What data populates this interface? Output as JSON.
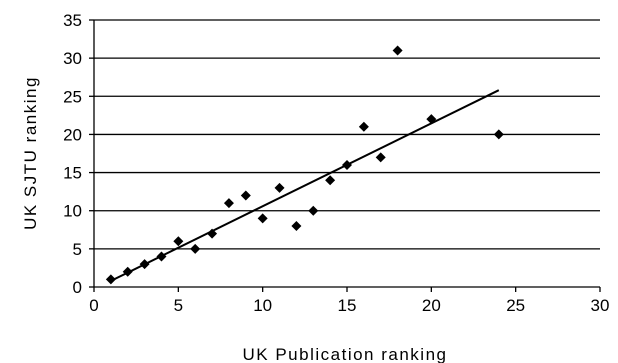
{
  "chart_data": {
    "type": "scatter",
    "title": "",
    "xlabel": "UK Publication ranking",
    "ylabel": "UK SJTU ranking",
    "xlim": [
      0,
      30
    ],
    "ylim": [
      0,
      35
    ],
    "x_ticks": [
      0,
      5,
      10,
      15,
      20,
      25,
      30
    ],
    "y_ticks": [
      0,
      5,
      10,
      15,
      20,
      25,
      30,
      35
    ],
    "grid": "horizontal",
    "legend": "none",
    "series": [
      {
        "points": [
          {
            "x": 1,
            "y": 1
          },
          {
            "x": 2,
            "y": 2
          },
          {
            "x": 3,
            "y": 3
          },
          {
            "x": 4,
            "y": 4
          },
          {
            "x": 5,
            "y": 6
          },
          {
            "x": 6,
            "y": 5
          },
          {
            "x": 7,
            "y": 7
          },
          {
            "x": 8,
            "y": 11
          },
          {
            "x": 9,
            "y": 12
          },
          {
            "x": 10,
            "y": 9
          },
          {
            "x": 11,
            "y": 13
          },
          {
            "x": 12,
            "y": 8
          },
          {
            "x": 13,
            "y": 10
          },
          {
            "x": 14,
            "y": 14
          },
          {
            "x": 15,
            "y": 16
          },
          {
            "x": 16,
            "y": 21
          },
          {
            "x": 17,
            "y": 17
          },
          {
            "x": 18,
            "y": 31
          },
          {
            "x": 20,
            "y": 22
          },
          {
            "x": 24,
            "y": 20
          }
        ]
      }
    ],
    "trendline": {
      "type": "linear",
      "x_start": 1,
      "y_start": 0.8,
      "x_end": 24,
      "y_end": 25.8
    }
  },
  "colors": {
    "marker": "#000000",
    "gridline": "#000000",
    "trendline": "#000000",
    "background": "#ffffff"
  }
}
